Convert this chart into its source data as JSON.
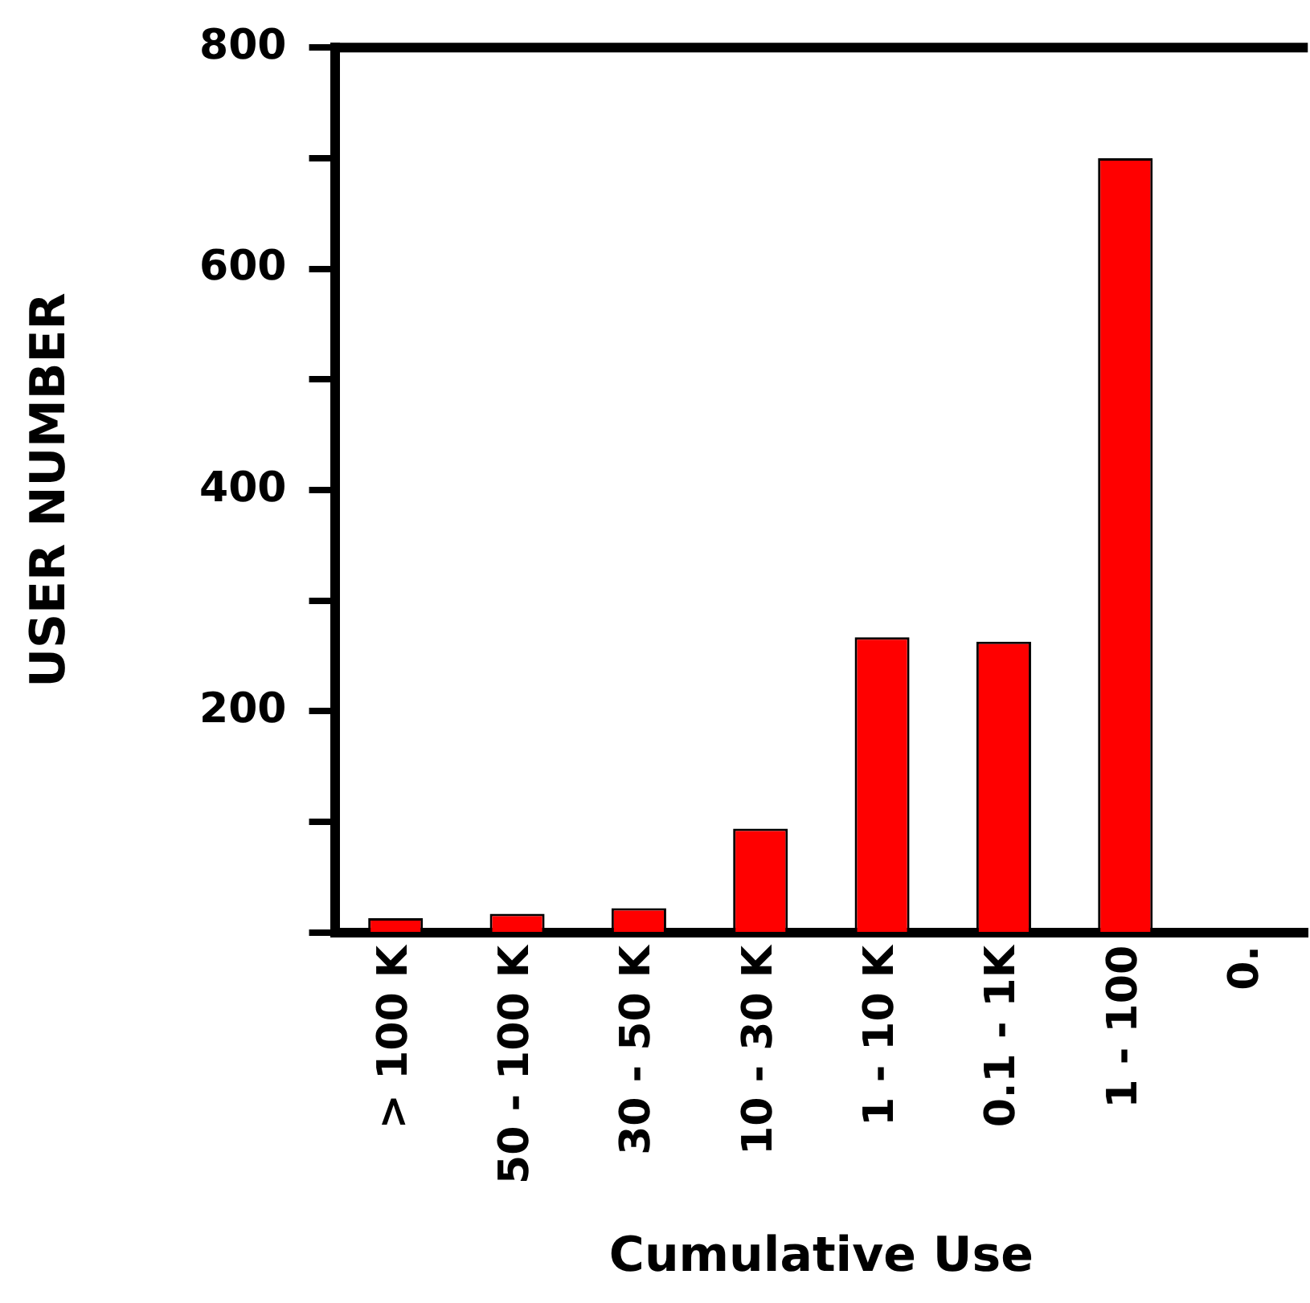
{
  "chart_data": {
    "type": "bar",
    "xlabel": "Cumulative Use",
    "ylabel": "USER NUMBER",
    "categories": [
      "> 100 K",
      "50 - 100 K",
      "30 - 50 K",
      "10 - 30 K",
      "1 - 10 K",
      "0.1 - 1K",
      "1 - 100",
      "0."
    ],
    "values": [
      13,
      17,
      22,
      94,
      267,
      263,
      700,
      null
    ],
    "color": "#ff0000",
    "ylim": [
      0,
      800
    ],
    "yticks": [
      {
        "value": 0,
        "label": null
      },
      {
        "value": 100,
        "label": null
      },
      200,
      {
        "value": 300,
        "label": null
      },
      400,
      {
        "value": 500,
        "label": null
      },
      600,
      {
        "value": 700,
        "label": null
      },
      800
    ],
    "grid": false,
    "legend": false
  }
}
